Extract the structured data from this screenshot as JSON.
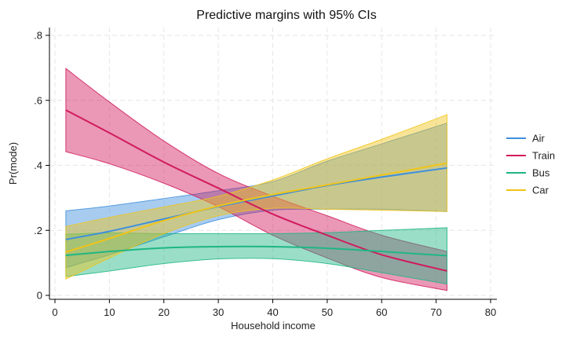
{
  "chart_data": {
    "type": "line",
    "title": "Predictive margins with 95% CIs",
    "xlabel": "Household income",
    "ylabel": "Pr(mode)",
    "xlim": [
      0,
      80
    ],
    "ylim": [
      0,
      0.8
    ],
    "x_ticks": [
      0,
      10,
      20,
      30,
      40,
      50,
      60,
      70,
      80
    ],
    "x_tick_labels": [
      "0",
      "10",
      "20",
      "30",
      "40",
      "50",
      "60",
      "70",
      "80"
    ],
    "y_ticks": [
      0,
      0.2,
      0.4,
      0.6,
      0.8
    ],
    "y_tick_labels": [
      "0",
      ".2",
      ".4",
      ".6",
      ".8"
    ],
    "grid": true,
    "legend_position": "right",
    "x": [
      2,
      10,
      20,
      30,
      40,
      50,
      60,
      72
    ],
    "series": [
      {
        "name": "Air",
        "color": "#3f8fdc",
        "values": [
          0.172,
          0.197,
          0.235,
          0.273,
          0.306,
          0.338,
          0.364,
          0.392
        ],
        "lower": [
          0.085,
          0.125,
          0.18,
          0.233,
          0.262,
          0.265,
          0.265,
          0.258
        ],
        "upper": [
          0.26,
          0.275,
          0.298,
          0.322,
          0.35,
          0.413,
          0.466,
          0.53
        ]
      },
      {
        "name": "Train",
        "color": "#d11a5c",
        "values": [
          0.57,
          0.5,
          0.41,
          0.33,
          0.25,
          0.185,
          0.125,
          0.075
        ],
        "lower": [
          0.442,
          0.405,
          0.345,
          0.273,
          0.185,
          0.115,
          0.055,
          0.015
        ],
        "upper": [
          0.698,
          0.595,
          0.475,
          0.375,
          0.305,
          0.245,
          0.185,
          0.135
        ]
      },
      {
        "name": "Bus",
        "color": "#1fb684",
        "values": [
          0.123,
          0.135,
          0.146,
          0.15,
          0.15,
          0.145,
          0.135,
          0.122
        ],
        "lower": [
          0.058,
          0.075,
          0.098,
          0.112,
          0.113,
          0.098,
          0.07,
          0.035
        ],
        "upper": [
          0.188,
          0.192,
          0.19,
          0.19,
          0.19,
          0.193,
          0.2,
          0.208
        ]
      },
      {
        "name": "Car",
        "color": "#f0c419",
        "values": [
          0.133,
          0.175,
          0.23,
          0.275,
          0.31,
          0.34,
          0.37,
          0.407
        ],
        "lower": [
          0.05,
          0.115,
          0.19,
          0.245,
          0.268,
          0.265,
          0.262,
          0.258
        ],
        "upper": [
          0.212,
          0.24,
          0.272,
          0.305,
          0.355,
          0.42,
          0.48,
          0.556
        ]
      }
    ]
  }
}
